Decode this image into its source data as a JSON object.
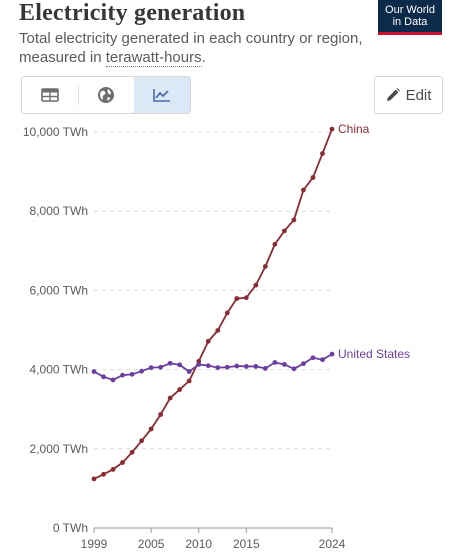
{
  "header": {
    "title": "Electricity generation",
    "subtitle_prefix": "Total electricity generated in each country or region, measured in ",
    "subtitle_link": "terawatt-hours",
    "subtitle_suffix": "."
  },
  "logo": {
    "line1": "Our World",
    "line2": "in Data"
  },
  "toolbar": {
    "tabs": [
      {
        "icon": "table-icon",
        "active": false
      },
      {
        "icon": "globe-icon",
        "active": false
      },
      {
        "icon": "line-chart-icon",
        "active": true
      }
    ],
    "edit_label": "Edit",
    "edit_icon": "pencil-icon"
  },
  "colors": {
    "china": "#8b2b33",
    "us": "#6b3fa0",
    "grid": "#d9d9d9",
    "text": "#5b5b5b"
  },
  "chart_data": {
    "type": "line",
    "title": "Electricity generation",
    "ylim": [
      0,
      10000
    ],
    "yticks": [
      0,
      2000,
      4000,
      6000,
      8000,
      10000
    ],
    "ytick_labels": [
      "0 TWh",
      "2,000 TWh",
      "4,000 TWh",
      "6,000 TWh",
      "8,000 TWh",
      "10,000 TWh"
    ],
    "xlim": [
      1999,
      2024
    ],
    "xticks": [
      1999,
      2005,
      2010,
      2015,
      2024
    ],
    "grid": true,
    "series": [
      {
        "name": "China",
        "x": [
          1999,
          2000,
          2001,
          2002,
          2003,
          2004,
          2005,
          2006,
          2007,
          2008,
          2009,
          2010,
          2011,
          2012,
          2013,
          2014,
          2015,
          2016,
          2017,
          2018,
          2019,
          2020,
          2021,
          2022,
          2023,
          2024
        ],
        "values": [
          1240,
          1356,
          1480,
          1654,
          1911,
          2203,
          2500,
          2866,
          3282,
          3496,
          3715,
          4208,
          4713,
          4988,
          5432,
          5794,
          5815,
          6133,
          6604,
          7166,
          7503,
          7779,
          8534,
          8849,
          9456,
          10073
        ]
      },
      {
        "name": "United States",
        "x": [
          1999,
          2000,
          2001,
          2002,
          2003,
          2004,
          2005,
          2006,
          2007,
          2008,
          2009,
          2010,
          2011,
          2012,
          2013,
          2014,
          2015,
          2016,
          2017,
          2018,
          2019,
          2020,
          2021,
          2022,
          2023,
          2024
        ],
        "values": [
          3950,
          3818,
          3740,
          3860,
          3880,
          3960,
          4050,
          4060,
          4160,
          4120,
          3950,
          4130,
          4100,
          4050,
          4060,
          4090,
          4080,
          4080,
          4030,
          4180,
          4130,
          4020,
          4150,
          4300,
          4250,
          4390
        ]
      }
    ]
  }
}
